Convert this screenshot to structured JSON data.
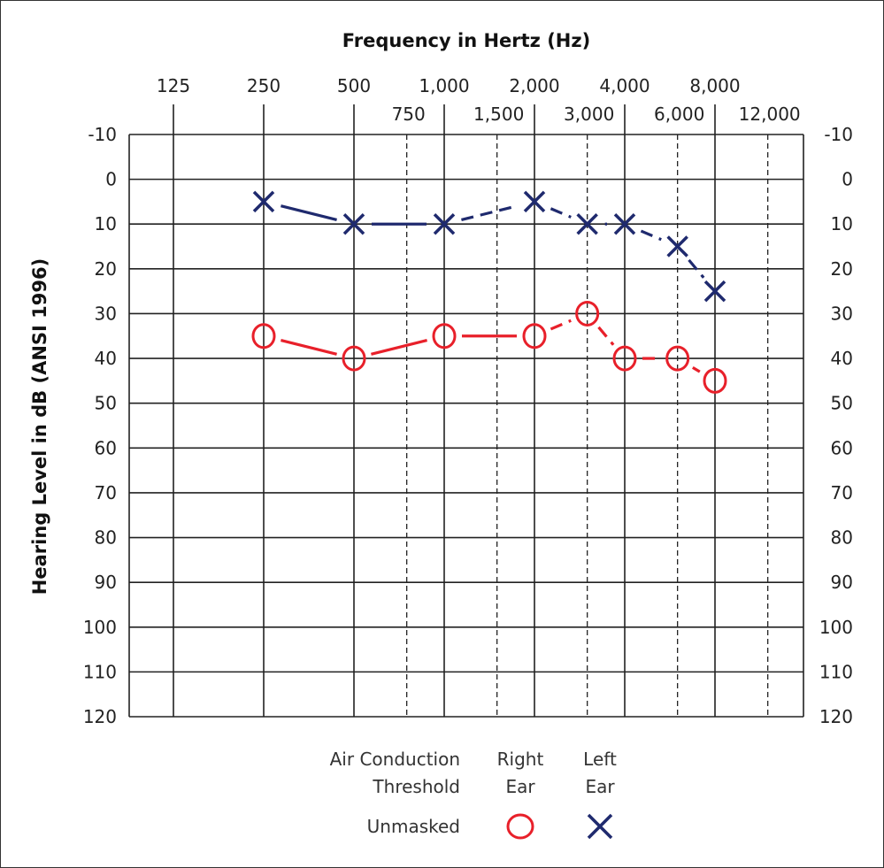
{
  "chart_data": {
    "type": "line",
    "title": "",
    "xlabel": "Frequency in Hertz (Hz)",
    "ylabel": "Hearing Level in dB (ANSI 1996)",
    "x_scale": "log2",
    "x_ticks_top": [
      "125",
      "250",
      "500",
      "1,000",
      "2,000",
      "4,000",
      "8,000"
    ],
    "x_ticks_bottom": [
      "750",
      "1,500",
      "3,000",
      "6,000",
      "12,000"
    ],
    "x_tick_values_top": [
      125,
      250,
      500,
      1000,
      2000,
      4000,
      8000
    ],
    "x_tick_values_bottom": [
      750,
      1500,
      3000,
      6000,
      12000
    ],
    "ylim": [
      -10,
      120
    ],
    "y_inverted": true,
    "y_ticks": [
      "-10",
      "0",
      "10",
      "20",
      "30",
      "40",
      "50",
      "60",
      "70",
      "80",
      "90",
      "100",
      "110",
      "120"
    ],
    "grid": true,
    "x": [
      250,
      500,
      1000,
      2000,
      3000,
      4000,
      6000,
      8000
    ],
    "series": [
      {
        "name": "Right Ear",
        "marker": "circle",
        "color": "#e8202a",
        "values": [
          35,
          40,
          35,
          35,
          30,
          40,
          40,
          45
        ]
      },
      {
        "name": "Left Ear",
        "marker": "x",
        "color": "#1f2a6e",
        "values": [
          5,
          10,
          10,
          5,
          10,
          10,
          15,
          25
        ]
      }
    ],
    "legend": {
      "row_header": [
        "Air Conduction",
        "Threshold"
      ],
      "col_right": [
        "Right",
        "Ear"
      ],
      "col_left": [
        "Left",
        "Ear"
      ],
      "row_label": "Unmasked",
      "placement": "bottom"
    }
  }
}
